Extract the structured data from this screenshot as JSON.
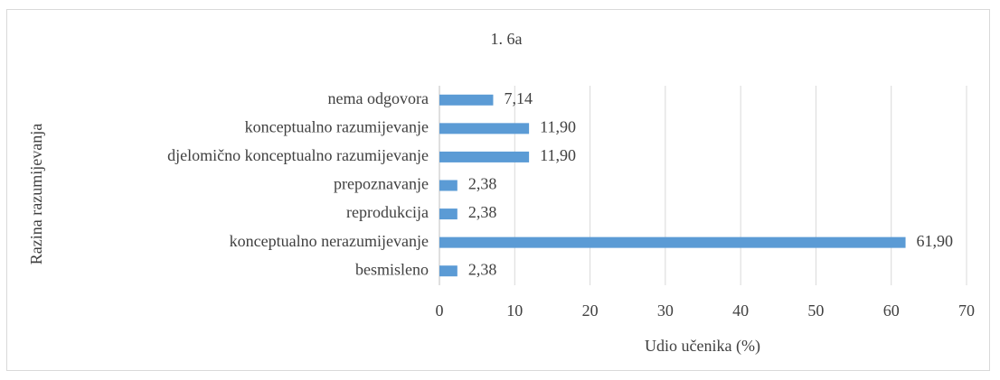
{
  "chart_data": {
    "type": "barh",
    "title": "1. 6a",
    "x_label": "Udio učenika (%)",
    "y_label": "Razina razumijevanja",
    "categories": [
      "nema odgovora",
      "konceptualno razumijevanje",
      "djelomično konceptualno razumijevanje",
      "prepoznavanje",
      "reprodukcija",
      "konceptualno nerazumijevanje",
      "besmisleno"
    ],
    "values": [
      7.14,
      11.9,
      11.9,
      2.38,
      2.38,
      61.9,
      2.38
    ],
    "value_labels": [
      "7,14",
      "11,90",
      "11,90",
      "2,38",
      "2,38",
      "61,90",
      "2,38"
    ],
    "color": "#5b9bd5",
    "xlim": [
      0,
      70
    ],
    "xticks": [
      0,
      10,
      20,
      30,
      40,
      50,
      60,
      70
    ],
    "grid": true
  }
}
